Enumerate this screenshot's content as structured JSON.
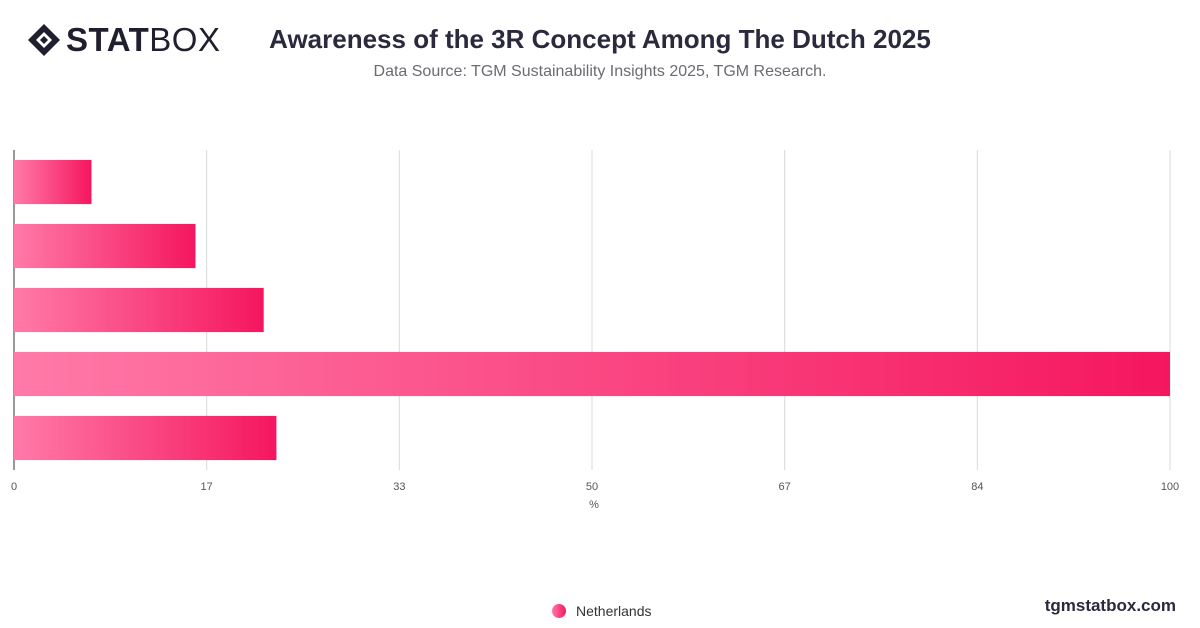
{
  "header": {
    "logo_bold": "STAT",
    "logo_light": "BOX",
    "title": "Awareness of the 3R Concept Among The Dutch 2025",
    "subtitle": "Data Source: TGM Sustainability Insights 2025, TGM Research."
  },
  "footer": {
    "site": "tgmstatbox.com"
  },
  "colors": {
    "bar_start": "#ff7aa8",
    "bar_end": "#f5165f",
    "grid": "#d9d9d9",
    "axis": "#333333"
  },
  "chart_data": {
    "type": "bar",
    "orientation": "horizontal",
    "categories": [
      "",
      "",
      "",
      "",
      ""
    ],
    "series": [
      {
        "name": "Netherlands",
        "values": [
          6.7,
          15.7,
          21.6,
          100,
          22.7
        ]
      }
    ],
    "xlabel": "%",
    "ylabel": "",
    "xlim": [
      0,
      100
    ],
    "xticks": [
      "0",
      "17",
      "33",
      "50",
      "67",
      "84",
      "100"
    ],
    "grid": true,
    "legend": "bottom-center"
  }
}
